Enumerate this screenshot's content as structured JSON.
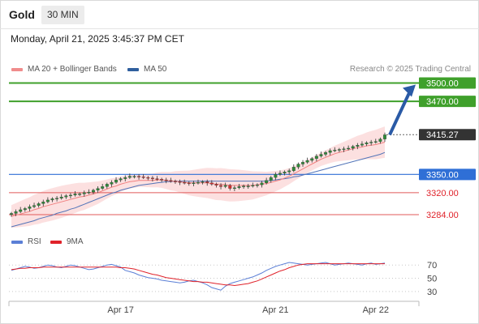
{
  "header": {
    "symbol": "Gold",
    "interval": "30 MIN"
  },
  "datetime": "Monday, April 21, 2025 3:45:37 PM CET",
  "legend": {
    "ma20": {
      "label": "MA 20 + Bollinger Bands",
      "color": "#f08c8c"
    },
    "ma50": {
      "label": "MA 50",
      "color": "#2f5f9e"
    },
    "credit": "Research © 2025 Trading Central"
  },
  "rsi_legend": {
    "rsi": {
      "label": "RSI",
      "color": "#5b7fd6"
    },
    "ma9": {
      "label": "9MA",
      "color": "#e0222a"
    }
  },
  "chart_data": [
    {
      "type": "line",
      "title": "",
      "x_ticks": [
        {
          "label": "Apr 17",
          "i": 24
        },
        {
          "label": "Apr 21",
          "i": 58
        },
        {
          "label": "Apr 22",
          "i": 80
        }
      ],
      "ylim": [
        3260,
        3510
      ],
      "levels": [
        {
          "value": 3500.0,
          "label": "3500.00",
          "style": "target-green"
        },
        {
          "value": 3470.0,
          "label": "3470.00",
          "style": "target-green"
        },
        {
          "value": 3415.27,
          "label": "3415.27",
          "style": "current"
        },
        {
          "value": 3350.0,
          "label": "3350.00",
          "style": "pivot-blue"
        },
        {
          "value": 3320.0,
          "label": "3320.00",
          "style": "support-red"
        },
        {
          "value": 3284.0,
          "label": "3284.00",
          "style": "support-red"
        }
      ],
      "price_close": [
        3286,
        3289,
        3292,
        3294,
        3297,
        3299,
        3302,
        3305,
        3308,
        3310,
        3311,
        3313,
        3315,
        3316,
        3318,
        3318,
        3320,
        3321,
        3324,
        3327,
        3330,
        3334,
        3337,
        3341,
        3343,
        3345,
        3347,
        3347,
        3346,
        3345,
        3344,
        3343,
        3342,
        3341,
        3340,
        3339,
        3338,
        3337,
        3336,
        3335,
        3336,
        3337,
        3338,
        3336,
        3334,
        3332,
        3330,
        3332,
        3327,
        3328,
        3330,
        3331,
        3331,
        3332,
        3333,
        3336,
        3340,
        3345,
        3350,
        3352,
        3354,
        3356,
        3362,
        3367,
        3370,
        3373,
        3376,
        3380,
        3383,
        3386,
        3389,
        3390,
        3391,
        3392,
        3393,
        3396,
        3398,
        3400,
        3402,
        3403,
        3404,
        3408,
        3415
      ],
      "series": [
        {
          "name": "MA 20",
          "values": [
            3281,
            3283,
            3285,
            3287,
            3289,
            3292,
            3294,
            3297,
            3299,
            3301,
            3303,
            3305,
            3307,
            3309,
            3311,
            3313,
            3314,
            3316,
            3318,
            3320,
            3323,
            3326,
            3329,
            3331,
            3334,
            3336,
            3338,
            3339,
            3340,
            3340,
            3340,
            3340,
            3341,
            3341,
            3340,
            3339,
            3339,
            3338,
            3337,
            3336,
            3336,
            3336,
            3336,
            3336,
            3335,
            3334,
            3334,
            3333,
            3332,
            3332,
            3332,
            3332,
            3332,
            3332,
            3333,
            3334,
            3335,
            3337,
            3339,
            3341,
            3344,
            3347,
            3351,
            3355,
            3359,
            3363,
            3367,
            3371,
            3375,
            3378,
            3381,
            3384,
            3386,
            3388,
            3390,
            3392,
            3394,
            3395,
            3397,
            3398,
            3399,
            3401,
            3403
          ]
        },
        {
          "name": "MA 50",
          "values": [
            3264,
            3266,
            3268,
            3270,
            3272,
            3274,
            3277,
            3279,
            3281,
            3283,
            3286,
            3288,
            3290,
            3293,
            3295,
            3298,
            3301,
            3304,
            3307,
            3310,
            3313,
            3316,
            3319,
            3321,
            3324,
            3326,
            3328,
            3330,
            3332,
            3333,
            3334,
            3335,
            3336,
            3337,
            3338,
            3338,
            3339,
            3339,
            3339,
            3339,
            3339,
            3339,
            3339,
            3339,
            3339,
            3339,
            3339,
            3339,
            3339,
            3339,
            3339,
            3339,
            3339,
            3339,
            3339,
            3339,
            3339,
            3340,
            3341,
            3342,
            3343,
            3344,
            3346,
            3347,
            3349,
            3351,
            3353,
            3355,
            3357,
            3359,
            3361,
            3363,
            3365,
            3367,
            3369,
            3371,
            3373,
            3375,
            3377,
            3379,
            3381,
            3383,
            3386
          ]
        }
      ]
    },
    {
      "type": "line",
      "title": "",
      "ylim": [
        20,
        85
      ],
      "y_ticks": [
        70,
        50,
        30
      ],
      "series": [
        {
          "name": "RSI",
          "values": [
            62,
            64,
            66,
            68,
            67,
            65,
            66,
            68,
            70,
            69,
            67,
            66,
            68,
            70,
            69,
            67,
            65,
            63,
            64,
            66,
            68,
            70,
            71,
            69,
            67,
            62,
            60,
            58,
            55,
            53,
            51,
            50,
            49,
            47,
            46,
            45,
            44,
            43,
            44,
            46,
            47,
            45,
            43,
            40,
            36,
            34,
            32,
            38,
            42,
            44,
            46,
            48,
            50,
            52,
            55,
            58,
            62,
            65,
            68,
            70,
            72,
            74,
            73,
            72,
            71,
            70,
            71,
            72,
            73,
            74,
            72,
            70,
            71,
            72,
            73,
            72,
            71,
            70,
            72,
            73,
            71,
            72,
            73
          ]
        },
        {
          "name": "9MA",
          "values": [
            63,
            64,
            65,
            65,
            66,
            66,
            66,
            67,
            67,
            67,
            67,
            67,
            67,
            67,
            67,
            67,
            67,
            67,
            67,
            67,
            67,
            67,
            67,
            67,
            66,
            66,
            65,
            64,
            62,
            60,
            58,
            56,
            55,
            53,
            51,
            50,
            49,
            48,
            47,
            46,
            45,
            45,
            44,
            44,
            43,
            42,
            41,
            40,
            40,
            39,
            40,
            41,
            42,
            44,
            46,
            49,
            52,
            55,
            58,
            61,
            63,
            66,
            68,
            70,
            71,
            72,
            72,
            72,
            72,
            72,
            72,
            72,
            72,
            72,
            72,
            72,
            72,
            72,
            72,
            72,
            72,
            72,
            72
          ]
        }
      ]
    }
  ]
}
